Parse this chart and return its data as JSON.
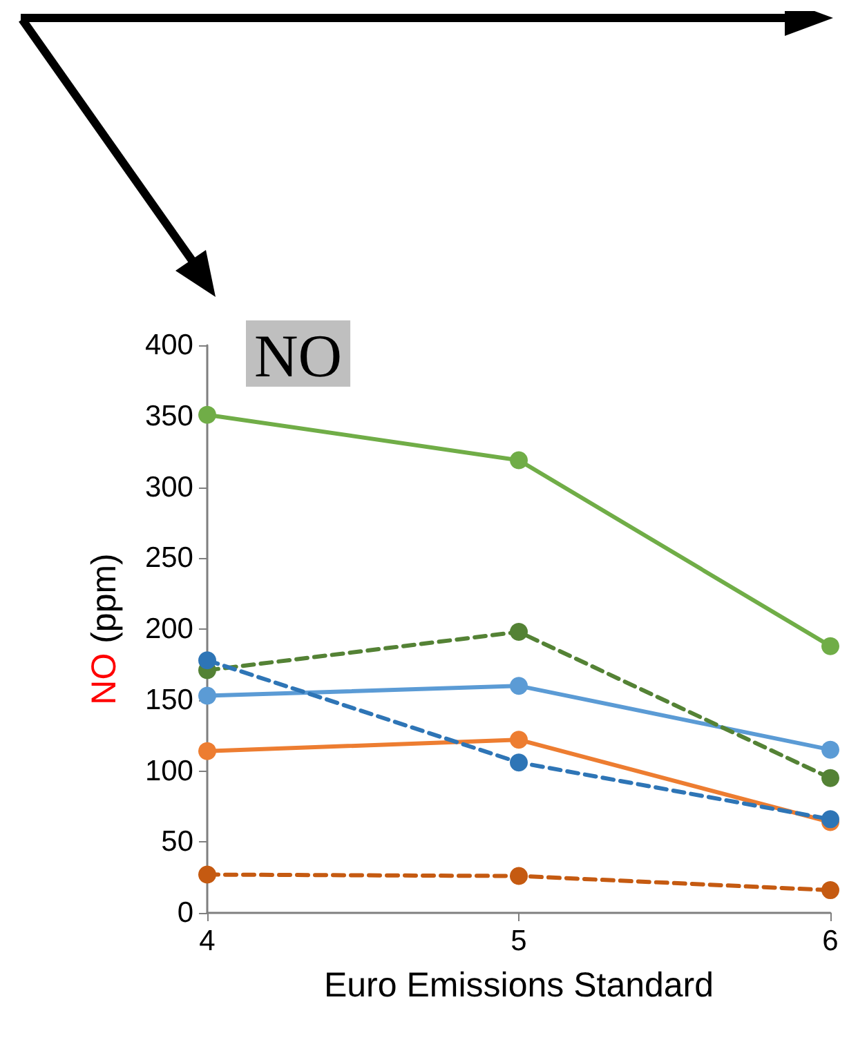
{
  "chart_data": {
    "type": "line",
    "title": "NO",
    "xlabel": "Euro Emissions Standard",
    "ylabel": "NO (ppm)",
    "x": [
      4,
      5,
      6
    ],
    "xlim": [
      4,
      6
    ],
    "xticks": [
      4,
      5,
      6
    ],
    "ylim": [
      0,
      400
    ],
    "yticks": [
      0,
      50,
      100,
      150,
      200,
      250,
      300,
      350,
      400
    ],
    "grid": false,
    "marker": "circle",
    "series": [
      {
        "color": "#70ad47",
        "line_style": "solid",
        "values": [
          351,
          319,
          188
        ]
      },
      {
        "color": "#548235",
        "line_style": "dashed",
        "values": [
          171,
          198,
          95
        ]
      },
      {
        "color": "#5b9bd5",
        "line_style": "solid",
        "values": [
          153,
          160,
          115
        ]
      },
      {
        "color": "#2e75b6",
        "line_style": "dashed",
        "values": [
          178,
          106,
          66
        ]
      },
      {
        "color": "#ed7d31",
        "line_style": "solid",
        "values": [
          114,
          122,
          64
        ]
      },
      {
        "color": "#c55a11",
        "line_style": "dashed",
        "values": [
          27,
          26,
          16
        ]
      }
    ]
  }
}
